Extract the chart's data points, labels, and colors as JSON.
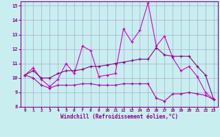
{
  "title": "",
  "xlabel": "Windchill (Refroidissement éolien,°C)",
  "ylabel": "",
  "bg_color": "#c8eef0",
  "grid_color": "#aaaacc",
  "line_color1": "#cc00cc",
  "line_color2": "#880088",
  "line_color3": "#aa00aa",
  "xlim": [
    -0.5,
    23.5
  ],
  "ylim": [
    8,
    15.3
  ],
  "xticks": [
    0,
    1,
    2,
    3,
    4,
    5,
    6,
    7,
    8,
    9,
    10,
    11,
    12,
    13,
    14,
    15,
    16,
    17,
    18,
    19,
    20,
    21,
    22,
    23
  ],
  "yticks": [
    8,
    9,
    10,
    11,
    12,
    13,
    14,
    15
  ],
  "x": [
    0,
    1,
    2,
    3,
    4,
    5,
    6,
    7,
    8,
    9,
    10,
    11,
    12,
    13,
    14,
    15,
    16,
    17,
    18,
    19,
    20,
    21,
    22,
    23
  ],
  "line1": [
    10.2,
    10.7,
    9.9,
    9.4,
    9.9,
    11.0,
    10.3,
    12.2,
    11.9,
    10.1,
    10.2,
    10.3,
    13.4,
    12.5,
    13.3,
    15.2,
    12.2,
    12.9,
    11.4,
    10.5,
    10.8,
    10.1,
    9.0,
    8.5
  ],
  "line2": [
    10.2,
    10.5,
    10.0,
    10.0,
    10.3,
    10.5,
    10.5,
    10.6,
    10.8,
    10.8,
    10.9,
    11.0,
    11.1,
    11.2,
    11.3,
    11.3,
    12.1,
    11.6,
    11.5,
    11.5,
    11.5,
    10.8,
    10.2,
    8.5
  ],
  "line3": [
    10.2,
    10.0,
    9.5,
    9.3,
    9.5,
    9.5,
    9.5,
    9.6,
    9.6,
    9.5,
    9.5,
    9.5,
    9.6,
    9.6,
    9.6,
    9.6,
    8.6,
    8.4,
    8.9,
    8.9,
    9.0,
    8.9,
    8.8,
    8.5
  ]
}
